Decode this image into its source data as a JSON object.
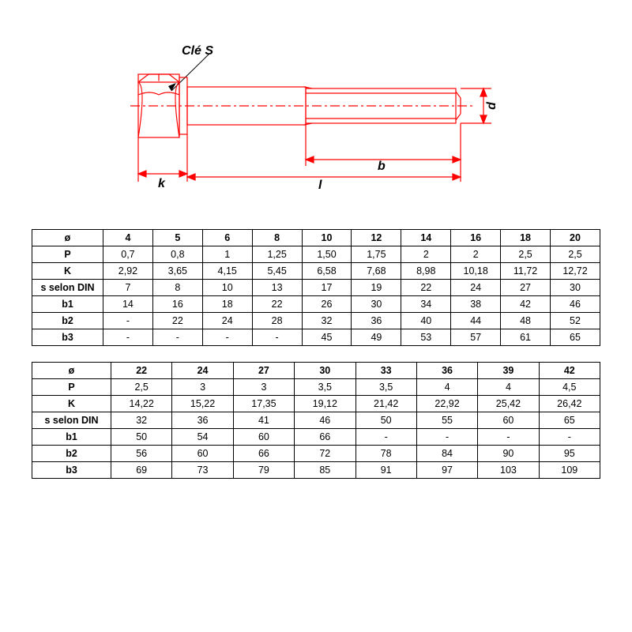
{
  "diagram": {
    "label_cle": "Clé S",
    "label_k": "k",
    "label_l": "l",
    "label_b": "b",
    "label_d": "d",
    "colors": {
      "bolt_stroke": "#ff0000",
      "dimension": "#ff0000",
      "leader": "#000000",
      "background": "#ffffff"
    },
    "stroke_width": 1.2
  },
  "table1": {
    "row_labels": [
      "ø",
      "P",
      "K",
      "s selon DIN",
      "b1",
      "b2",
      "b3"
    ],
    "num_cols": 10,
    "rows": [
      [
        "4",
        "5",
        "6",
        "8",
        "10",
        "12",
        "14",
        "16",
        "18",
        "20"
      ],
      [
        "0,7",
        "0,8",
        "1",
        "1,25",
        "1,50",
        "1,75",
        "2",
        "2",
        "2,5",
        "2,5"
      ],
      [
        "2,92",
        "3,65",
        "4,15",
        "5,45",
        "6,58",
        "7,68",
        "8,98",
        "10,18",
        "11,72",
        "12,72"
      ],
      [
        "7",
        "8",
        "10",
        "13",
        "17",
        "19",
        "22",
        "24",
        "27",
        "30"
      ],
      [
        "14",
        "16",
        "18",
        "22",
        "26",
        "30",
        "34",
        "38",
        "42",
        "46"
      ],
      [
        "-",
        "22",
        "24",
        "28",
        "32",
        "36",
        "40",
        "44",
        "48",
        "52"
      ],
      [
        "-",
        "-",
        "-",
        "-",
        "45",
        "49",
        "53",
        "57",
        "61",
        "65"
      ]
    ]
  },
  "table2": {
    "row_labels": [
      "ø",
      "P",
      "K",
      "s selon DIN",
      "b1",
      "b2",
      "b3"
    ],
    "num_cols": 8,
    "rows": [
      [
        "22",
        "24",
        "27",
        "30",
        "33",
        "36",
        "39",
        "42"
      ],
      [
        "2,5",
        "3",
        "3",
        "3,5",
        "3,5",
        "4",
        "4",
        "4,5"
      ],
      [
        "14,22",
        "15,22",
        "17,35",
        "19,12",
        "21,42",
        "22,92",
        "25,42",
        "26,42"
      ],
      [
        "32",
        "36",
        "41",
        "46",
        "50",
        "55",
        "60",
        "65"
      ],
      [
        "50",
        "54",
        "60",
        "66",
        "-",
        "-",
        "-",
        "-"
      ],
      [
        "56",
        "60",
        "66",
        "72",
        "78",
        "84",
        "90",
        "95"
      ],
      [
        "69",
        "73",
        "79",
        "85",
        "91",
        "97",
        "103",
        "109"
      ]
    ]
  },
  "style": {
    "table_font_size_pt": 10,
    "label_font_size_pt": 12,
    "border_color": "#000000",
    "text_color": "#000000"
  }
}
